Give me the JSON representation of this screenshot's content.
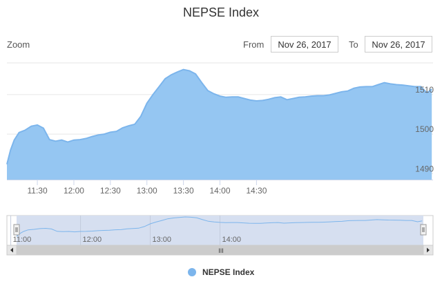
{
  "chart_data": {
    "type": "area",
    "title": "NEPSE Index",
    "series": [
      {
        "name": "NEPSE Index",
        "color": "#7cb5ec"
      }
    ],
    "x_minutes": [
      0,
      3,
      6,
      10,
      15,
      20,
      25,
      30,
      35,
      40,
      45,
      50,
      55,
      60,
      65,
      70,
      75,
      80,
      85,
      90,
      95,
      100,
      105,
      110,
      115,
      120,
      125,
      130,
      135,
      140,
      145,
      150,
      155,
      160,
      165,
      170,
      175,
      180,
      185,
      190,
      195,
      200,
      205,
      210,
      215,
      220,
      225,
      230,
      235,
      240,
      245,
      250,
      255,
      260,
      265,
      270,
      275,
      280,
      285,
      290,
      295,
      300,
      305,
      310,
      315,
      320,
      325,
      330,
      335,
      340,
      345,
      349
    ],
    "values": [
      1492.4,
      1496.0,
      1498.5,
      1500.4,
      1501.0,
      1502.0,
      1502.3,
      1501.5,
      1498.6,
      1498.2,
      1498.5,
      1498.0,
      1498.5,
      1498.6,
      1498.9,
      1499.4,
      1499.8,
      1500.0,
      1500.5,
      1500.7,
      1501.6,
      1502.1,
      1502.5,
      1504.5,
      1507.8,
      1510.0,
      1512.0,
      1514.0,
      1515.0,
      1515.7,
      1516.3,
      1516.0,
      1515.2,
      1513.0,
      1511.0,
      1510.2,
      1509.6,
      1509.3,
      1509.4,
      1509.4,
      1509.0,
      1508.6,
      1508.4,
      1508.5,
      1508.8,
      1509.2,
      1509.4,
      1508.7,
      1509.0,
      1509.3,
      1509.4,
      1509.6,
      1509.7,
      1509.7,
      1509.9,
      1510.3,
      1510.7,
      1510.9,
      1511.6,
      1511.9,
      1512.0,
      1512.0,
      1512.5,
      1513.0,
      1512.7,
      1512.5,
      1512.4,
      1512.2,
      1512.0,
      1512.0,
      1510.4,
      1511.4
    ],
    "x_ticks": [
      "11:30",
      "12:00",
      "12:30",
      "13:00",
      "13:30",
      "14:00",
      "14:30"
    ],
    "y_ticks": [
      "1490",
      "1500",
      "1510"
    ],
    "ylim": [
      1488.5,
      1518
    ],
    "grid": true,
    "legend": "bottom-center"
  },
  "header": {
    "zoom_label": "Zoom",
    "from_label": "From",
    "from_value": "Nov 26, 2017",
    "to_label": "To",
    "to_value": "Nov 26, 2017"
  },
  "navigator": {
    "x_ticks": [
      "11:00",
      "12:00",
      "13:00",
      "14:00"
    ],
    "scrollbar_grip": "III"
  },
  "legend": {
    "label": "NEPSE Index"
  }
}
